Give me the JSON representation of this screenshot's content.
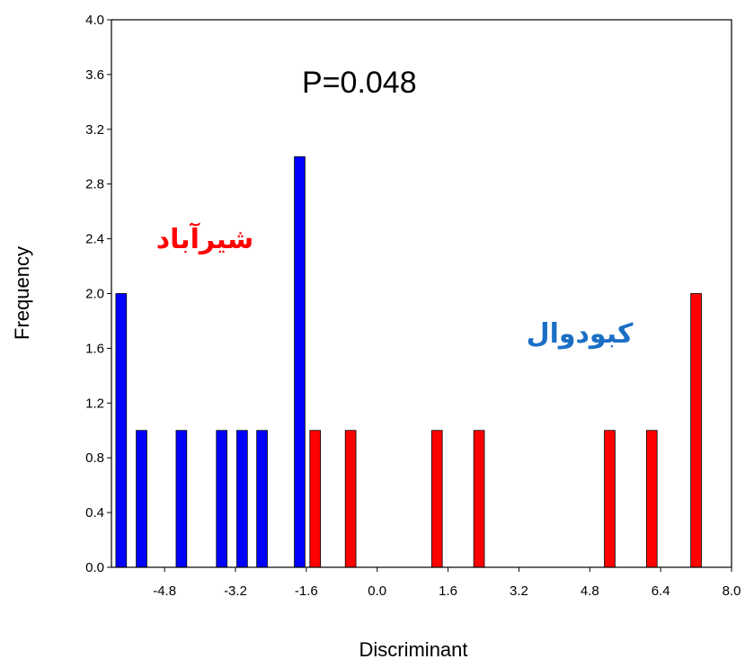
{
  "chart_data": {
    "type": "bar",
    "xlabel": "Discriminant",
    "ylabel": "Frequency",
    "xlim": [
      -6.0,
      8.0
    ],
    "ylim": [
      0.0,
      4.0
    ],
    "x_ticks": [
      "-4.8",
      "-3.2",
      "-1.6",
      "0.0",
      "1.6",
      "3.2",
      "4.8",
      "6.4",
      "8.0"
    ],
    "y_ticks": [
      "0.0",
      "0.4",
      "0.8",
      "1.2",
      "1.6",
      "2.0",
      "2.4",
      "2.8",
      "3.2",
      "3.6",
      "4.0"
    ],
    "series": [
      {
        "name": "شیرآباد",
        "color": "#0000ff",
        "bars": [
          {
            "x": -5.78,
            "y": 2
          },
          {
            "x": -5.32,
            "y": 1
          },
          {
            "x": -4.42,
            "y": 1
          },
          {
            "x": -3.51,
            "y": 1
          },
          {
            "x": -3.05,
            "y": 1
          },
          {
            "x": -2.6,
            "y": 1
          },
          {
            "x": -1.75,
            "y": 3
          }
        ]
      },
      {
        "name": "کبودوال",
        "color": "#ff0000",
        "bars": [
          {
            "x": -1.4,
            "y": 1
          },
          {
            "x": -0.6,
            "y": 1
          },
          {
            "x": 1.35,
            "y": 1
          },
          {
            "x": 2.3,
            "y": 1
          },
          {
            "x": 5.25,
            "y": 1
          },
          {
            "x": 6.2,
            "y": 1
          },
          {
            "x": 7.2,
            "y": 2
          }
        ]
      }
    ],
    "annotations": [
      {
        "text": "P=0.048",
        "color": "#000000"
      },
      {
        "text": "شیرآباد",
        "color": "#ff0000"
      },
      {
        "text": "کبودوال",
        "color": "#1a6fc4"
      }
    ]
  }
}
